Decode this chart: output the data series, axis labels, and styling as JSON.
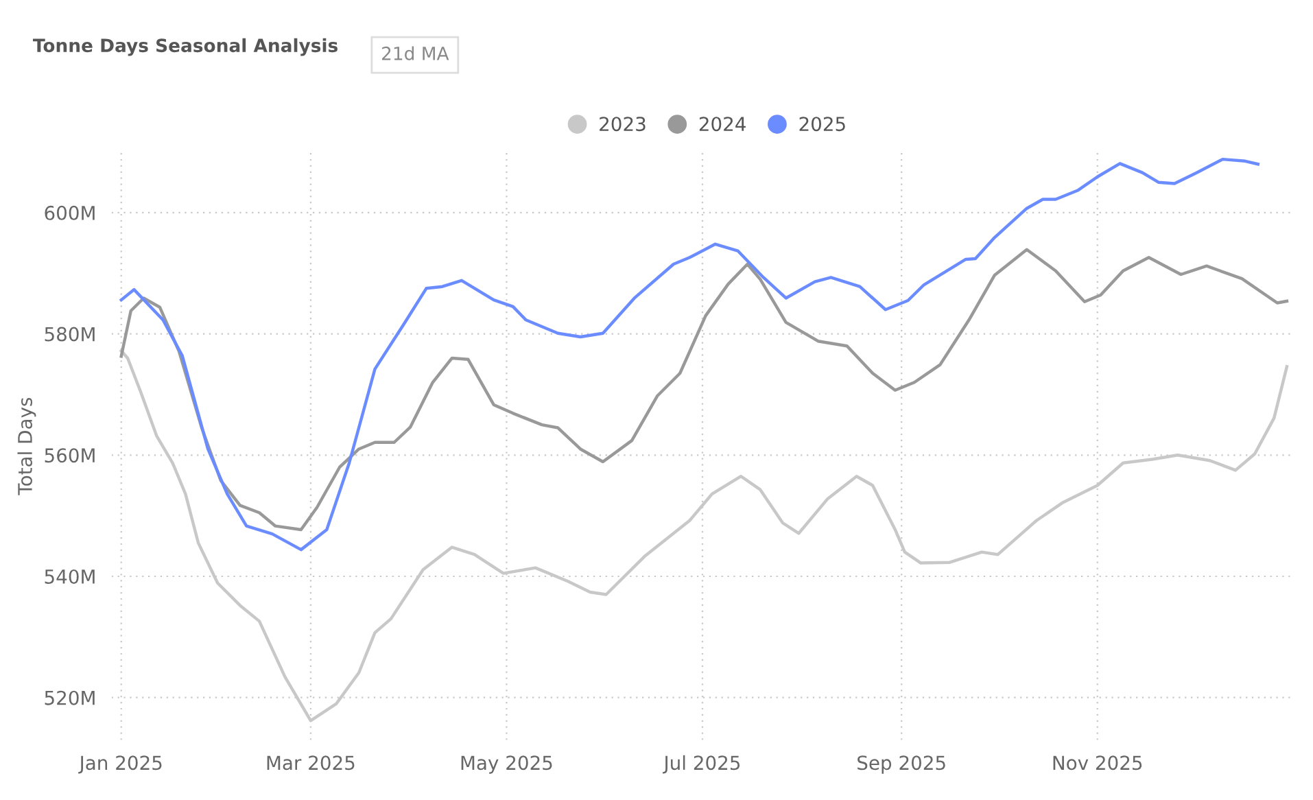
{
  "chart_data": {
    "type": "line",
    "title": "Tonne Days Seasonal Analysis",
    "subtitle": "21d MA",
    "ylabel": "Total Days",
    "legend": "top",
    "grid": true,
    "line_style": "solid",
    "marker": "none",
    "xlim": [
      "2024-12-29",
      "2026-01-01"
    ],
    "ylim": [
      513,
      610
    ],
    "xticks": [
      {
        "value": "2025-01-01",
        "label": "Jan 2025"
      },
      {
        "value": "2025-03-01",
        "label": "Mar 2025"
      },
      {
        "value": "2025-05-01",
        "label": "May 2025"
      },
      {
        "value": "2025-07-01",
        "label": "Jul 2025"
      },
      {
        "value": "2025-09-01",
        "label": "Sep 2025"
      },
      {
        "value": "2025-11-01",
        "label": "Nov 2025"
      }
    ],
    "yticks": [
      {
        "value": 520,
        "label": "520M"
      },
      {
        "value": 540,
        "label": "540M"
      },
      {
        "value": 560,
        "label": "560M"
      },
      {
        "value": 580,
        "label": "580M"
      },
      {
        "value": 600,
        "label": "600M"
      }
    ],
    "series": [
      {
        "name": "2023",
        "color": "#c8c8c8",
        "x": [
          "2025-01-01",
          "2025-01-03",
          "2025-01-07",
          "2025-01-12",
          "2025-01-17",
          "2025-01-21",
          "2025-01-25",
          "2025-01-31",
          "2025-02-07",
          "2025-02-13",
          "2025-02-21",
          "2025-03-01",
          "2025-03-09",
          "2025-03-16",
          "2025-03-21",
          "2025-03-26",
          "2025-04-05",
          "2025-04-14",
          "2025-04-21",
          "2025-04-30",
          "2025-05-10",
          "2025-05-20",
          "2025-05-27",
          "2025-06-01",
          "2025-06-13",
          "2025-06-27",
          "2025-07-04",
          "2025-07-13",
          "2025-07-19",
          "2025-07-26",
          "2025-07-31",
          "2025-08-09",
          "2025-08-18",
          "2025-08-23",
          "2025-08-30",
          "2025-09-02",
          "2025-09-07",
          "2025-09-16",
          "2025-09-26",
          "2025-10-01",
          "2025-10-13",
          "2025-10-21",
          "2025-11-01",
          "2025-11-09",
          "2025-11-18",
          "2025-11-26",
          "2025-12-06",
          "2025-12-14",
          "2025-12-20",
          "2025-12-26",
          "2025-12-30"
        ],
        "values": [
          577.2,
          576,
          570.5,
          563.2,
          558.7,
          553.6,
          545.5,
          538.9,
          535.2,
          532.6,
          523.4,
          516.2,
          519,
          524.1,
          530.7,
          533,
          541.1,
          544.8,
          543.6,
          540.5,
          541.4,
          539.2,
          537.4,
          537,
          543.3,
          549.2,
          553.6,
          556.5,
          554.3,
          548.8,
          547.1,
          552.8,
          556.5,
          555,
          547.7,
          544,
          542.2,
          542.3,
          544,
          543.6,
          549.2,
          552.1,
          555,
          558.7,
          559.3,
          560,
          559.1,
          557.5,
          560.2,
          566.1,
          574.6
        ]
      },
      {
        "name": "2024",
        "color": "#999999",
        "x": [
          "2025-01-01",
          "2025-01-04",
          "2025-01-08",
          "2025-01-13",
          "2025-01-19",
          "2025-01-26",
          "2025-02-01",
          "2025-02-07",
          "2025-02-13",
          "2025-02-18",
          "2025-02-26",
          "2025-03-03",
          "2025-03-10",
          "2025-03-16",
          "2025-03-21",
          "2025-03-27",
          "2025-04-01",
          "2025-04-08",
          "2025-04-14",
          "2025-04-19",
          "2025-04-27",
          "2025-05-03",
          "2025-05-12",
          "2025-05-17",
          "2025-05-24",
          "2025-05-31",
          "2025-06-09",
          "2025-06-17",
          "2025-06-24",
          "2025-07-02",
          "2025-07-09",
          "2025-07-15",
          "2025-07-19",
          "2025-07-27",
          "2025-08-06",
          "2025-08-15",
          "2025-08-23",
          "2025-08-30",
          "2025-09-05",
          "2025-09-13",
          "2025-09-22",
          "2025-09-30",
          "2025-10-10",
          "2025-10-19",
          "2025-10-28",
          "2025-11-02",
          "2025-11-09",
          "2025-11-17",
          "2025-11-27",
          "2025-12-05",
          "2025-12-16",
          "2025-12-27",
          "2025-12-30"
        ],
        "values": [
          576.3,
          583.8,
          585.9,
          584.4,
          577.1,
          564.6,
          555.8,
          551.7,
          550.5,
          548.3,
          547.7,
          551.4,
          558,
          561,
          562.1,
          562.1,
          564.6,
          572,
          576,
          575.8,
          568.3,
          566.9,
          565,
          564.5,
          561,
          558.9,
          562.4,
          569.8,
          573.5,
          583,
          588.2,
          591.5,
          589,
          581.9,
          578.8,
          578,
          573.5,
          570.7,
          572,
          574.9,
          582.3,
          589.7,
          593.9,
          590.4,
          585.3,
          586.4,
          590.4,
          592.6,
          589.8,
          591.2,
          589.1,
          585.1,
          585.4
        ]
      },
      {
        "name": "2025",
        "color": "#6b8cff",
        "x": [
          "2025-01-01",
          "2025-01-05",
          "2025-01-14",
          "2025-01-20",
          "2025-01-28",
          "2025-02-03",
          "2025-02-09",
          "2025-02-17",
          "2025-02-26",
          "2025-03-06",
          "2025-03-13",
          "2025-03-21",
          "2025-03-30",
          "2025-04-06",
          "2025-04-11",
          "2025-04-17",
          "2025-04-27",
          "2025-05-03",
          "2025-05-07",
          "2025-05-17",
          "2025-05-24",
          "2025-05-31",
          "2025-06-10",
          "2025-06-22",
          "2025-06-27",
          "2025-07-05",
          "2025-07-12",
          "2025-07-20",
          "2025-07-27",
          "2025-08-05",
          "2025-08-10",
          "2025-08-19",
          "2025-08-27",
          "2025-09-03",
          "2025-09-08",
          "2025-09-21",
          "2025-09-24",
          "2025-09-30",
          "2025-10-10",
          "2025-10-15",
          "2025-10-19",
          "2025-10-26",
          "2025-11-01",
          "2025-11-08",
          "2025-11-15",
          "2025-11-20",
          "2025-11-25",
          "2025-12-02",
          "2025-12-10",
          "2025-12-17",
          "2025-12-21"
        ],
        "values": [
          585.6,
          587.3,
          582.3,
          576.4,
          561,
          553.6,
          548.3,
          547,
          544.4,
          547.7,
          558.7,
          574.2,
          581.6,
          587.5,
          587.8,
          588.8,
          585.6,
          584.5,
          582.3,
          580.1,
          579.5,
          580.1,
          586,
          591.5,
          592.6,
          594.8,
          593.7,
          589.3,
          585.9,
          588.6,
          589.3,
          587.8,
          584,
          585.5,
          588.1,
          592.3,
          592.4,
          595.9,
          600.7,
          602.2,
          602.2,
          603.7,
          605.9,
          608.1,
          606.6,
          605,
          604.8,
          606.6,
          608.8,
          608.5,
          608
        ]
      }
    ]
  }
}
